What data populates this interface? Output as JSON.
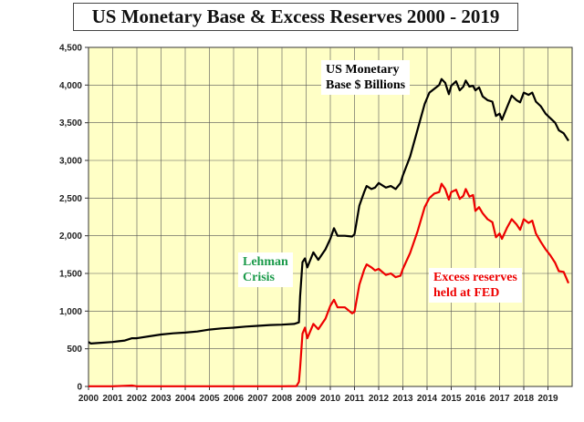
{
  "chart_data": {
    "type": "line",
    "title": "US Monetary Base & Excess Reserves 2000 - 2019",
    "xlabel": "",
    "ylabel": "",
    "xlim": [
      2000,
      2020
    ],
    "ylim": [
      0,
      4500
    ],
    "grid": true,
    "x_ticks": [
      "2000",
      "2001",
      "2002",
      "2003",
      "2004",
      "2005",
      "2006",
      "2007",
      "2008",
      "2009",
      "2010",
      "2011",
      "2012",
      "2013",
      "2014",
      "2015",
      "2016",
      "2017",
      "2018",
      "2019"
    ],
    "y_ticks": [
      "0",
      "500",
      "1,000",
      "1,500",
      "2,000",
      "2,500",
      "3,000",
      "3,500",
      "4,000",
      "4,500"
    ],
    "annotations": [
      {
        "id": "monetary",
        "lines": [
          "US Monetary",
          "Base $ Billions"
        ],
        "color": "#000000"
      },
      {
        "id": "lehman",
        "lines": [
          "Lehman",
          "Crisis"
        ],
        "color": "#1a9a4a"
      },
      {
        "id": "excess",
        "lines": [
          "Excess reserves",
          "held at FED"
        ],
        "color": "#ee0000"
      }
    ],
    "series": [
      {
        "name": "US Monetary Base $ Billions",
        "color": "#000000",
        "points": [
          [
            2000.0,
            590
          ],
          [
            2000.1,
            570
          ],
          [
            2000.3,
            575
          ],
          [
            2001.0,
            590
          ],
          [
            2001.5,
            610
          ],
          [
            2001.8,
            640
          ],
          [
            2002.0,
            640
          ],
          [
            2002.5,
            665
          ],
          [
            2003.0,
            690
          ],
          [
            2003.5,
            705
          ],
          [
            2004.0,
            715
          ],
          [
            2004.5,
            730
          ],
          [
            2005.0,
            755
          ],
          [
            2005.5,
            770
          ],
          [
            2006.0,
            780
          ],
          [
            2006.5,
            795
          ],
          [
            2007.0,
            805
          ],
          [
            2007.5,
            815
          ],
          [
            2008.0,
            820
          ],
          [
            2008.5,
            830
          ],
          [
            2008.7,
            850
          ],
          [
            2008.75,
            1200
          ],
          [
            2008.85,
            1650
          ],
          [
            2008.95,
            1700
          ],
          [
            2009.05,
            1580
          ],
          [
            2009.3,
            1780
          ],
          [
            2009.5,
            1680
          ],
          [
            2009.8,
            1820
          ],
          [
            2010.0,
            1960
          ],
          [
            2010.15,
            2100
          ],
          [
            2010.3,
            2000
          ],
          [
            2010.6,
            2000
          ],
          [
            2010.9,
            1990
          ],
          [
            2011.0,
            2020
          ],
          [
            2011.2,
            2400
          ],
          [
            2011.4,
            2580
          ],
          [
            2011.5,
            2660
          ],
          [
            2011.7,
            2620
          ],
          [
            2011.85,
            2640
          ],
          [
            2012.0,
            2700
          ],
          [
            2012.3,
            2640
          ],
          [
            2012.5,
            2660
          ],
          [
            2012.7,
            2620
          ],
          [
            2012.9,
            2700
          ],
          [
            2013.0,
            2800
          ],
          [
            2013.3,
            3050
          ],
          [
            2013.6,
            3400
          ],
          [
            2013.9,
            3750
          ],
          [
            2014.1,
            3900
          ],
          [
            2014.3,
            3950
          ],
          [
            2014.5,
            4000
          ],
          [
            2014.6,
            4080
          ],
          [
            2014.75,
            4030
          ],
          [
            2014.9,
            3880
          ],
          [
            2015.0,
            3990
          ],
          [
            2015.2,
            4050
          ],
          [
            2015.35,
            3930
          ],
          [
            2015.5,
            3980
          ],
          [
            2015.6,
            4060
          ],
          [
            2015.75,
            3980
          ],
          [
            2015.9,
            3990
          ],
          [
            2016.0,
            3930
          ],
          [
            2016.15,
            3970
          ],
          [
            2016.3,
            3850
          ],
          [
            2016.5,
            3800
          ],
          [
            2016.7,
            3780
          ],
          [
            2016.85,
            3590
          ],
          [
            2017.0,
            3620
          ],
          [
            2017.1,
            3540
          ],
          [
            2017.3,
            3700
          ],
          [
            2017.5,
            3860
          ],
          [
            2017.7,
            3800
          ],
          [
            2017.85,
            3770
          ],
          [
            2018.0,
            3900
          ],
          [
            2018.2,
            3870
          ],
          [
            2018.35,
            3900
          ],
          [
            2018.5,
            3780
          ],
          [
            2018.7,
            3720
          ],
          [
            2018.9,
            3620
          ],
          [
            2019.1,
            3560
          ],
          [
            2019.3,
            3500
          ],
          [
            2019.45,
            3400
          ],
          [
            2019.65,
            3360
          ],
          [
            2019.85,
            3260
          ]
        ]
      },
      {
        "name": "Excess reserves held at FED",
        "color": "#ee0000",
        "points": [
          [
            2000.0,
            2
          ],
          [
            2001.0,
            2
          ],
          [
            2001.8,
            12
          ],
          [
            2002.0,
            2
          ],
          [
            2003.0,
            2
          ],
          [
            2004.0,
            2
          ],
          [
            2005.0,
            2
          ],
          [
            2006.0,
            2
          ],
          [
            2007.0,
            2
          ],
          [
            2008.0,
            2
          ],
          [
            2008.6,
            5
          ],
          [
            2008.7,
            60
          ],
          [
            2008.75,
            250
          ],
          [
            2008.85,
            700
          ],
          [
            2008.95,
            780
          ],
          [
            2009.05,
            640
          ],
          [
            2009.3,
            830
          ],
          [
            2009.5,
            760
          ],
          [
            2009.8,
            900
          ],
          [
            2010.0,
            1070
          ],
          [
            2010.15,
            1150
          ],
          [
            2010.3,
            1050
          ],
          [
            2010.6,
            1050
          ],
          [
            2010.9,
            970
          ],
          [
            2011.0,
            990
          ],
          [
            2011.2,
            1350
          ],
          [
            2011.4,
            1550
          ],
          [
            2011.5,
            1620
          ],
          [
            2011.7,
            1580
          ],
          [
            2011.85,
            1540
          ],
          [
            2012.0,
            1560
          ],
          [
            2012.3,
            1480
          ],
          [
            2012.5,
            1500
          ],
          [
            2012.7,
            1450
          ],
          [
            2012.9,
            1470
          ],
          [
            2013.0,
            1560
          ],
          [
            2013.3,
            1770
          ],
          [
            2013.6,
            2050
          ],
          [
            2013.9,
            2380
          ],
          [
            2014.1,
            2500
          ],
          [
            2014.3,
            2560
          ],
          [
            2014.5,
            2580
          ],
          [
            2014.6,
            2690
          ],
          [
            2014.75,
            2620
          ],
          [
            2014.9,
            2480
          ],
          [
            2015.0,
            2580
          ],
          [
            2015.2,
            2610
          ],
          [
            2015.35,
            2490
          ],
          [
            2015.5,
            2530
          ],
          [
            2015.6,
            2620
          ],
          [
            2015.75,
            2520
          ],
          [
            2015.9,
            2540
          ],
          [
            2016.0,
            2330
          ],
          [
            2016.15,
            2380
          ],
          [
            2016.3,
            2300
          ],
          [
            2016.5,
            2220
          ],
          [
            2016.7,
            2180
          ],
          [
            2016.85,
            1980
          ],
          [
            2017.0,
            2030
          ],
          [
            2017.1,
            1960
          ],
          [
            2017.3,
            2100
          ],
          [
            2017.5,
            2220
          ],
          [
            2017.7,
            2150
          ],
          [
            2017.85,
            2080
          ],
          [
            2018.0,
            2220
          ],
          [
            2018.2,
            2170
          ],
          [
            2018.35,
            2200
          ],
          [
            2018.5,
            2030
          ],
          [
            2018.7,
            1920
          ],
          [
            2018.9,
            1820
          ],
          [
            2019.1,
            1740
          ],
          [
            2019.3,
            1640
          ],
          [
            2019.45,
            1530
          ],
          [
            2019.65,
            1520
          ],
          [
            2019.85,
            1370
          ]
        ]
      }
    ]
  }
}
